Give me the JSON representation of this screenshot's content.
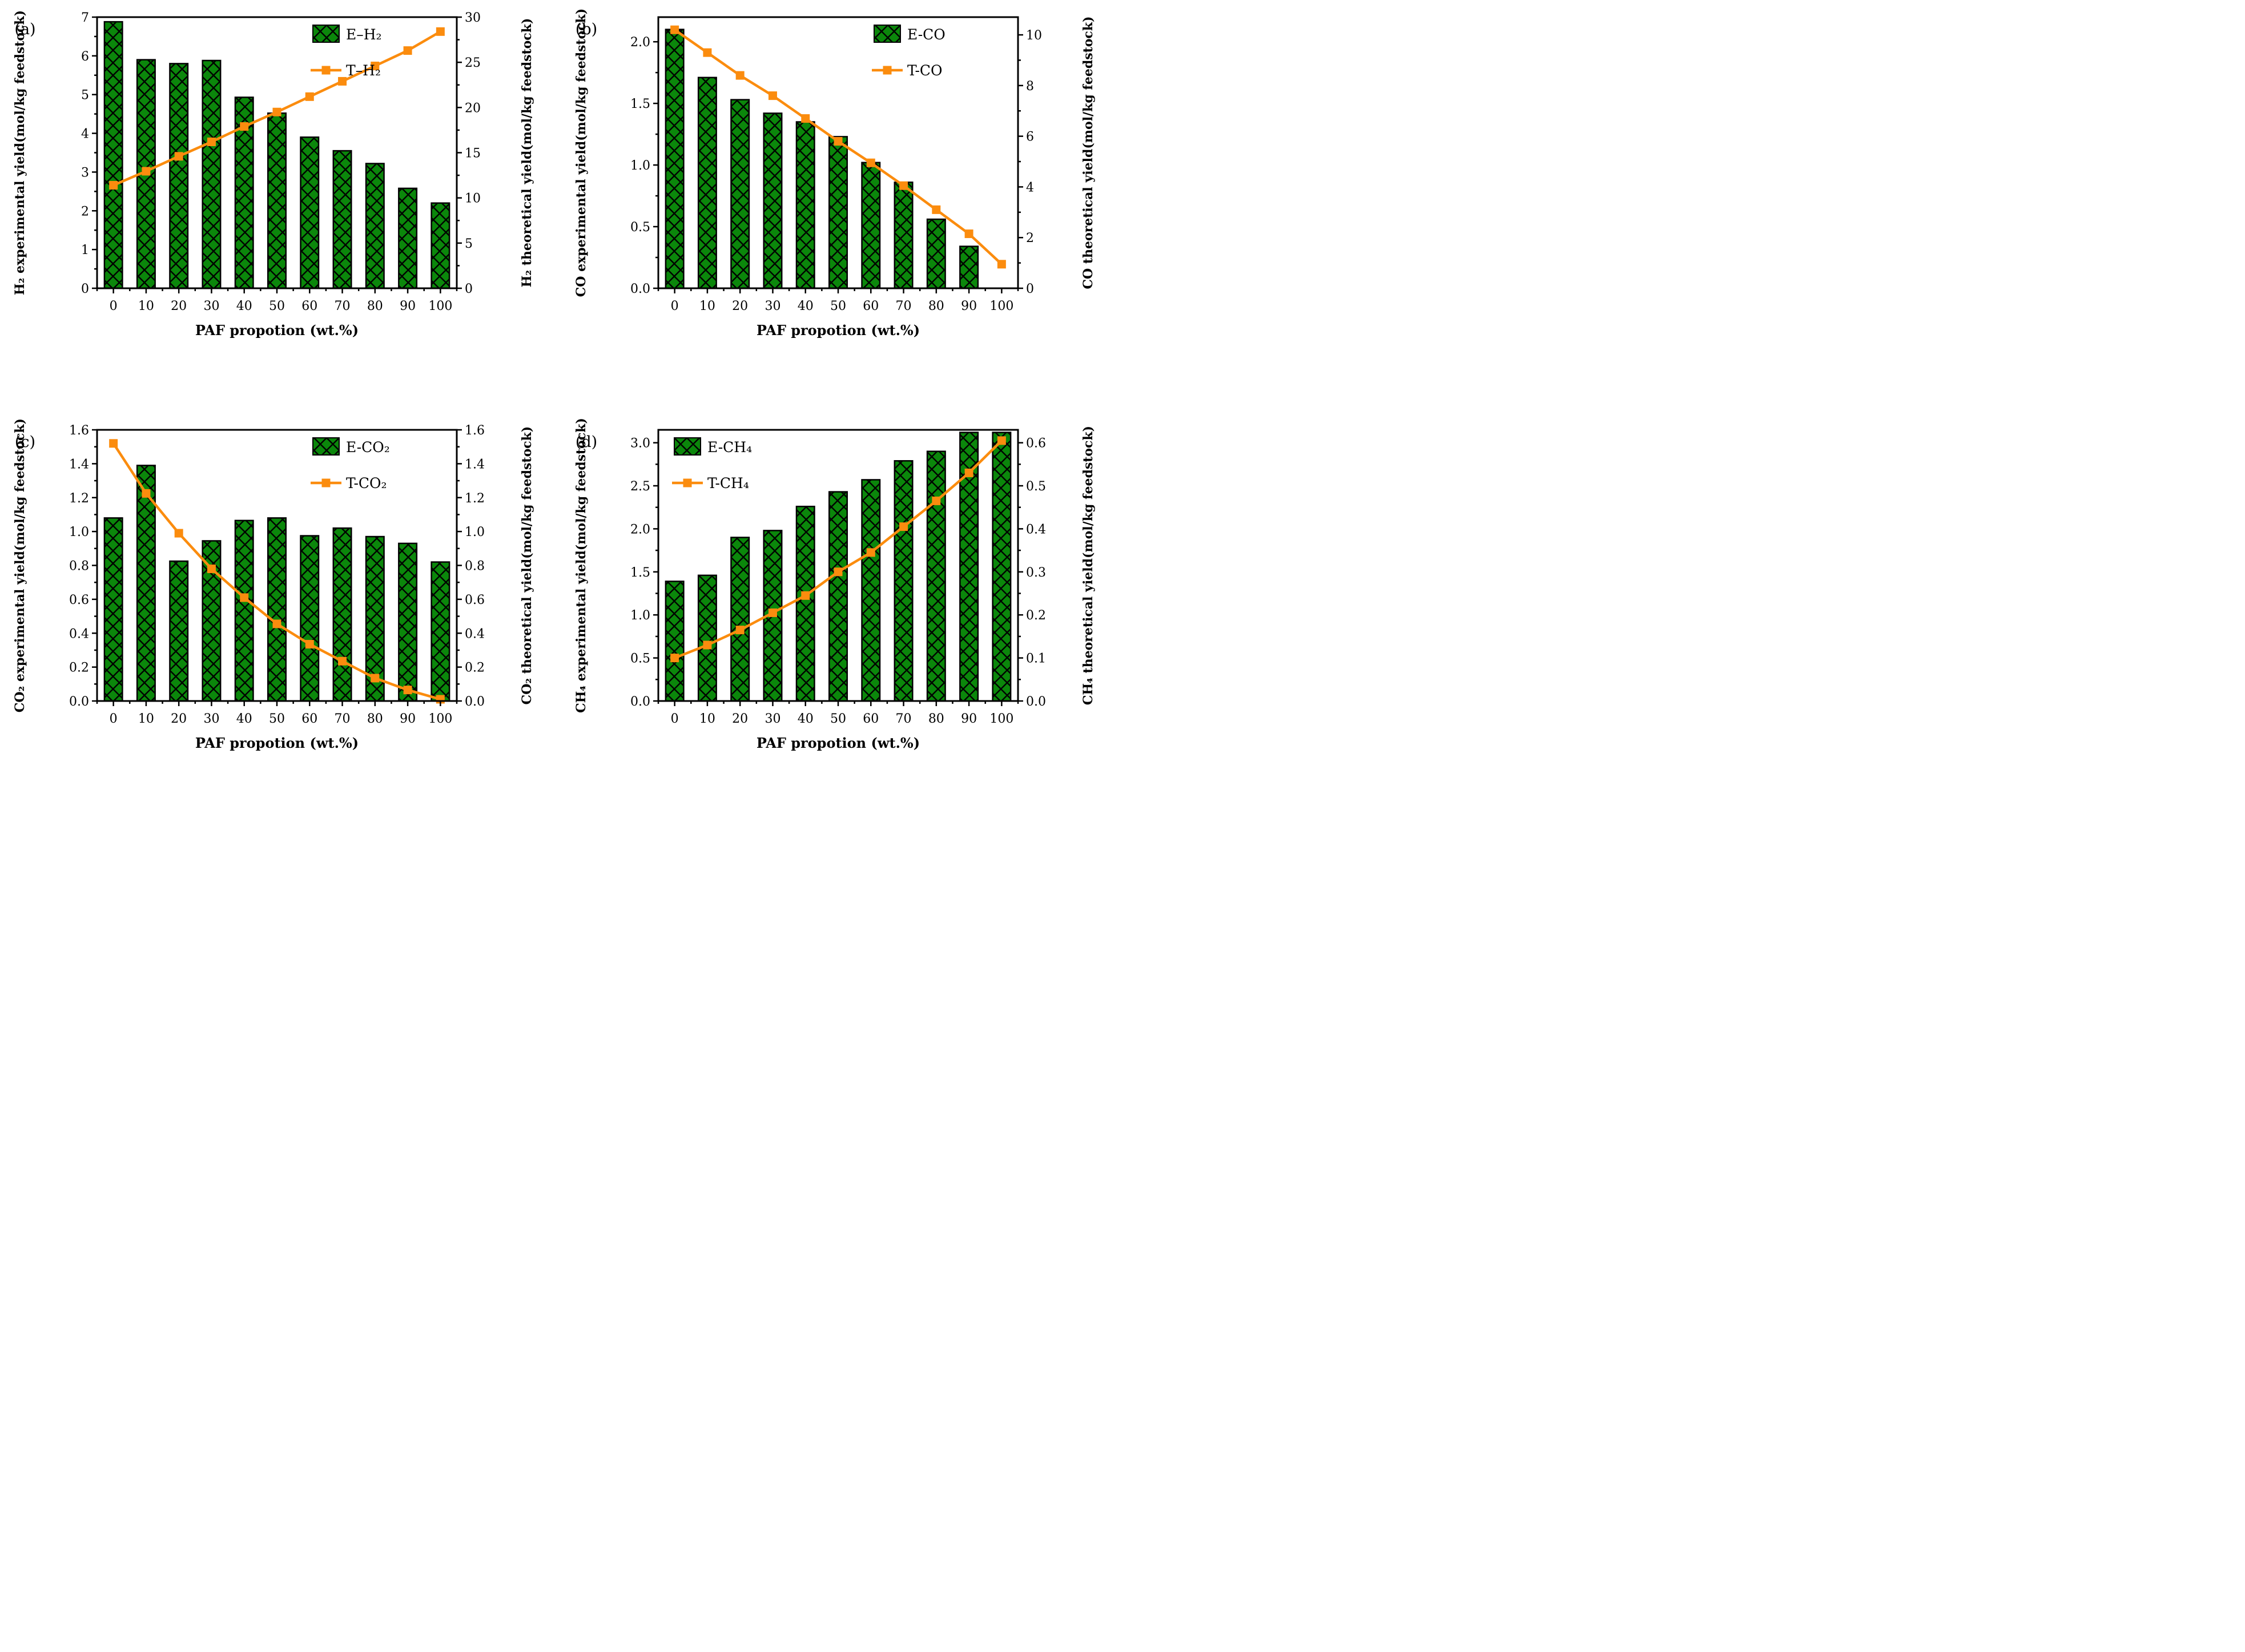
{
  "figure_title": "",
  "x_axis_label": "PAF propotion (wt.%)",
  "colors": {
    "bar_fill": "#0B870B",
    "bar_hatch": "#000000",
    "bar_border": "#000000",
    "line": "#FB8C0E",
    "axis": "#000000",
    "background": "#ffffff"
  },
  "chart_data": [
    {
      "id": "a",
      "letter": "(a)",
      "type": "bar+line",
      "categories": [
        0,
        10,
        20,
        30,
        40,
        50,
        60,
        70,
        80,
        90,
        100
      ],
      "x_label": "PAF propotion (wt.%)",
      "legend": {
        "bar": "E–H₂",
        "line": "T–H₂",
        "position": "top-right"
      },
      "left_axis": {
        "label": "H₂ experimental yield(mol/kg feedstock)",
        "min": 0,
        "max": 7,
        "label_max": 7,
        "tick_step": 1,
        "minor_step": 0.5,
        "decimals": 0
      },
      "right_axis": {
        "label": "H₂ theoretical yield(mol/kg feedstock)",
        "min": 0,
        "max": 30,
        "label_max": 30,
        "tick_step": 5,
        "minor_step": 2.5,
        "decimals": 0
      },
      "bars": {
        "name": "E–H₂",
        "values": [
          6.88,
          5.9,
          5.8,
          5.88,
          4.93,
          4.52,
          3.9,
          3.55,
          3.22,
          2.58,
          2.2
        ]
      },
      "line": {
        "name": "T–H₂",
        "values": [
          11.4,
          12.95,
          14.6,
          16.2,
          17.9,
          19.5,
          21.2,
          22.9,
          24.6,
          26.3,
          28.4
        ]
      }
    },
    {
      "id": "b",
      "letter": "(b)",
      "type": "bar+line",
      "categories": [
        0,
        10,
        20,
        30,
        40,
        50,
        60,
        70,
        80,
        90,
        100
      ],
      "x_label": "PAF propotion (wt.%)",
      "legend": {
        "bar": "E-CO",
        "line": "T-CO",
        "position": "top-right"
      },
      "left_axis": {
        "label": "CO experimental yield(mol/kg feedstock)",
        "min": 0,
        "max": 2.2,
        "label_max": 2.0,
        "tick_step": 0.5,
        "minor_step": 0.25,
        "decimals": 1
      },
      "right_axis": {
        "label": "CO theoretical yield(mol/kg feedstock)",
        "min": 0,
        "max": 10.7,
        "label_max": 10,
        "tick_step": 2,
        "minor_step": 1,
        "decimals": 0
      },
      "bars": {
        "name": "E-CO",
        "values": [
          2.1,
          1.71,
          1.53,
          1.42,
          1.35,
          1.23,
          1.02,
          0.86,
          0.56,
          0.34,
          0
        ]
      },
      "line": {
        "name": "T-CO",
        "values": [
          10.2,
          9.3,
          8.4,
          7.6,
          6.7,
          5.8,
          4.95,
          4.05,
          3.1,
          2.15,
          0.95
        ]
      }
    },
    {
      "id": "c",
      "letter": "(c)",
      "type": "bar+line",
      "categories": [
        0,
        10,
        20,
        30,
        40,
        50,
        60,
        70,
        80,
        90,
        100
      ],
      "x_label": "PAF propotion (wt.%)",
      "legend": {
        "bar": "E-CO₂",
        "line": "T-CO₂",
        "position": "top-right"
      },
      "left_axis": {
        "label": "CO₂ experimental yield(mol/kg feedstock)",
        "min": 0,
        "max": 1.6,
        "label_max": 1.6,
        "tick_step": 0.2,
        "minor_step": 0.1,
        "decimals": 1
      },
      "right_axis": {
        "label": "CO₂  theoretical yield(mol/kg feedstock)",
        "min": 0,
        "max": 1.6,
        "label_max": 1.6,
        "tick_step": 0.2,
        "minor_step": 0.1,
        "decimals": 1
      },
      "bars": {
        "name": "E-CO₂",
        "values": [
          1.08,
          1.39,
          0.825,
          0.945,
          1.065,
          1.08,
          0.975,
          1.02,
          0.97,
          0.93,
          0.82
        ]
      },
      "line": {
        "name": "T-CO₂",
        "values": [
          1.52,
          1.225,
          0.99,
          0.78,
          0.61,
          0.455,
          0.335,
          0.235,
          0.135,
          0.065,
          0.01
        ]
      }
    },
    {
      "id": "d",
      "letter": "(d)",
      "type": "bar+line",
      "categories": [
        0,
        10,
        20,
        30,
        40,
        50,
        60,
        70,
        80,
        90,
        100
      ],
      "x_label": "PAF propotion (wt.%)",
      "legend": {
        "bar": "E-CH₄",
        "line": "T-CH₄",
        "position": "top-left"
      },
      "left_axis": {
        "label": "CH₄ experimental yield(mol/kg feedstock)",
        "min": 0,
        "max": 3.15,
        "label_max": 3.0,
        "tick_step": 0.5,
        "minor_step": 0.25,
        "decimals": 1
      },
      "right_axis": {
        "label": "CH₄ theoretical yield(mol/kg feedstock)",
        "min": 0,
        "max": 0.63,
        "label_max": 0.6,
        "tick_step": 0.1,
        "minor_step": 0.05,
        "decimals": 1
      },
      "bars": {
        "name": "E-CH₄",
        "values": [
          1.39,
          1.46,
          1.9,
          1.98,
          2.26,
          2.43,
          2.57,
          2.79,
          2.9,
          3.12,
          3.12
        ]
      },
      "line": {
        "name": "T-CH₄",
        "values": [
          0.1,
          0.13,
          0.165,
          0.205,
          0.245,
          0.3,
          0.345,
          0.405,
          0.465,
          0.53,
          0.605
        ]
      }
    }
  ]
}
